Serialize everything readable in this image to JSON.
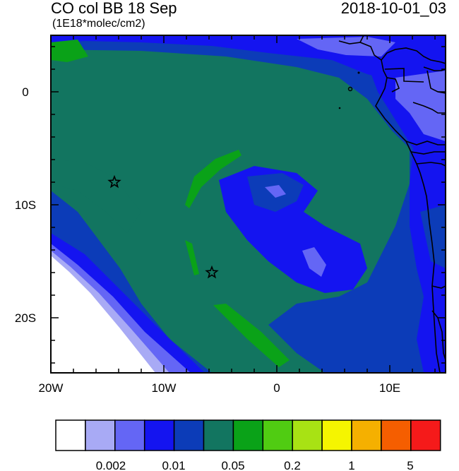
{
  "header": {
    "title": "CO col BB 18 Sep",
    "subtitle": "(1E18*molec/cm2)",
    "timestamp": "2018-10-01_03"
  },
  "map": {
    "region": "Southeast Atlantic / West-Central Africa coast",
    "lon_range": [
      -20,
      15
    ],
    "lat_range": [
      -25,
      5
    ],
    "lon_ticks": [
      {
        "value": -20,
        "label": "20W"
      },
      {
        "value": -10,
        "label": "10W"
      },
      {
        "value": 0,
        "label": "0"
      },
      {
        "value": 10,
        "label": "10E"
      }
    ],
    "lat_ticks": [
      {
        "value": 0,
        "label": "0"
      },
      {
        "value": -10,
        "label": "10S"
      },
      {
        "value": -20,
        "label": "20S"
      }
    ],
    "markers": [
      {
        "type": "star",
        "lon": -14.5,
        "lat": -8.0
      },
      {
        "type": "star",
        "lon": -5.8,
        "lat": -16.0
      }
    ]
  },
  "colorbar": {
    "colors": [
      "#ffffff",
      "#a8aaf5",
      "#6466f5",
      "#1414f0",
      "#0c3cb8",
      "#127560",
      "#0aa218",
      "#50cc12",
      "#a8e214",
      "#f5f500",
      "#f5b000",
      "#f55e00",
      "#f51a1a"
    ],
    "tick_labels": [
      "0.002",
      "0.01",
      "0.05",
      "0.2",
      "1",
      "5"
    ]
  }
}
